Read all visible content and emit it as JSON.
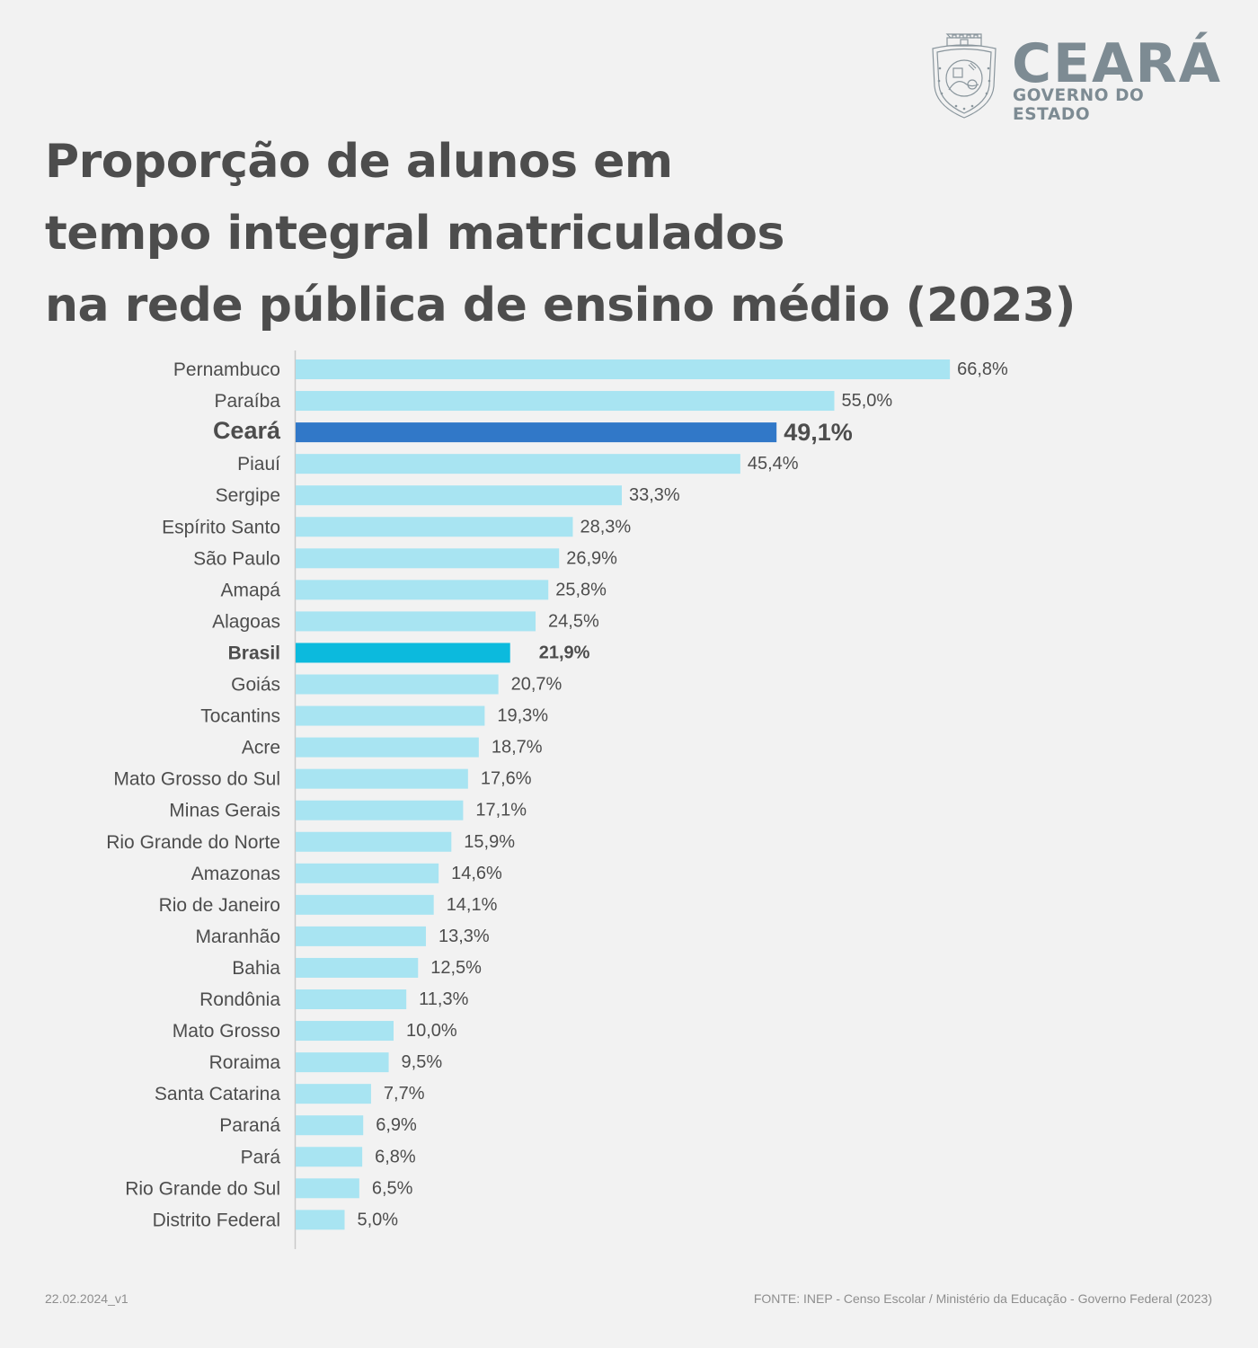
{
  "logo": {
    "name": "CEARÁ",
    "subtitle": "GOVERNO DO ESTADO",
    "crest_icon": "ceara-coat-of-arms-icon"
  },
  "title_lines": [
    "Proporção de alunos em",
    "tempo integral matriculados",
    "na rede pública de ensino médio (2023)"
  ],
  "footer": {
    "version": "22.02.2024_v1",
    "source": "FONTE: INEP - Censo Escolar / Ministério da Educação - Governo Federal (2023)"
  },
  "colors": {
    "default_bar": "#a8e4f2",
    "ceara_bar": "#3178c8",
    "brasil_bar": "#0cbadd",
    "text": "#4d4d4d",
    "logo": "#7d8b93"
  },
  "chart_data": {
    "type": "bar",
    "orientation": "horizontal",
    "title": "Proporção de alunos em tempo integral matriculados na rede pública de ensino médio (2023)",
    "unit": "%",
    "xlabel": "",
    "ylabel": "",
    "xlim": [
      0,
      70
    ],
    "grid": false,
    "categories": [
      "Pernambuco",
      "Paraíba",
      "Ceará",
      "Piauí",
      "Sergipe",
      "Espírito Santo",
      "São Paulo",
      "Amapá",
      "Alagoas",
      "Brasil",
      "Goiás",
      "Tocantins",
      "Acre",
      "Mato Grosso do Sul",
      "Minas Gerais",
      "Rio Grande do Norte",
      "Amazonas",
      "Rio de Janeiro",
      "Maranhão",
      "Bahia",
      "Rondônia",
      "Mato Grosso",
      "Roraima",
      "Santa Catarina",
      "Paraná",
      "Pará",
      "Rio Grande do Sul",
      "Distrito Federal"
    ],
    "values": [
      66.8,
      55.0,
      49.1,
      45.4,
      33.3,
      28.3,
      26.9,
      25.8,
      24.5,
      21.9,
      20.7,
      19.3,
      18.7,
      17.6,
      17.1,
      15.9,
      14.6,
      14.1,
      13.3,
      12.5,
      11.3,
      10.0,
      9.5,
      7.7,
      6.9,
      6.8,
      6.5,
      5.0
    ],
    "labels": [
      "66,8%",
      "55,0%",
      "49,1%",
      "45,4%",
      "33,3%",
      "28,3%",
      "26,9%",
      "25,8%",
      "24,5%",
      "21,9%",
      "20,7%",
      "19,3%",
      "18,7%",
      "17,6%",
      "17,1%",
      "15,9%",
      "14,6%",
      "14,1%",
      "13,3%",
      "12,5%",
      "11,3%",
      "10,0%",
      "9,5%",
      "7,7%",
      "6,9%",
      "6,8%",
      "6,5%",
      "5,0%"
    ],
    "highlights": {
      "Ceará": "ceara",
      "Brasil": "brasil"
    }
  }
}
